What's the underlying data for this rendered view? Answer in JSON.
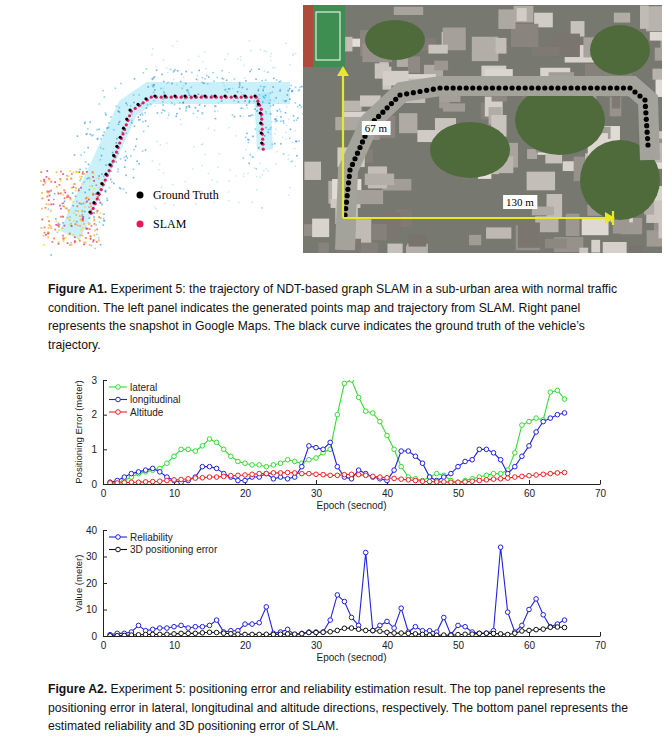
{
  "chart_data": [
    {
      "type": "line",
      "x_label": "Epoch (secnod)",
      "y_label": "Positioning Error (meter)",
      "xlim": [
        0,
        70
      ],
      "xticks": [
        0,
        10,
        20,
        30,
        40,
        50,
        60,
        70
      ],
      "ylim": [
        0,
        3
      ],
      "yticks": [
        0,
        1,
        2,
        3
      ],
      "grid": false,
      "legend": "upper left",
      "x": [
        1,
        2,
        3,
        4,
        5,
        6,
        7,
        8,
        9,
        10,
        11,
        12,
        13,
        14,
        15,
        16,
        17,
        18,
        19,
        20,
        21,
        22,
        23,
        24,
        25,
        26,
        27,
        28,
        29,
        30,
        31,
        32,
        33,
        34,
        35,
        36,
        37,
        38,
        39,
        40,
        41,
        42,
        43,
        44,
        45,
        46,
        47,
        48,
        49,
        50,
        51,
        52,
        53,
        54,
        55,
        56,
        57,
        58,
        59,
        60,
        61,
        62,
        63,
        64,
        65
      ],
      "series": [
        {
          "name": "lateral",
          "color": "#33dd33",
          "marker": "circle",
          "values": [
            0.05,
            0.05,
            0.1,
            0.2,
            0.3,
            0.35,
            0.4,
            0.45,
            0.6,
            0.8,
            1.0,
            1.0,
            0.95,
            1.1,
            1.3,
            1.2,
            1.0,
            0.8,
            0.65,
            0.6,
            0.55,
            0.55,
            0.5,
            0.55,
            0.6,
            0.7,
            0.65,
            0.6,
            0.7,
            0.75,
            0.9,
            1.0,
            2.0,
            2.9,
            3.0,
            2.5,
            2.1,
            2.05,
            1.8,
            1.4,
            1.0,
            0.5,
            0.2,
            0.15,
            0.1,
            0.2,
            0.3,
            0.25,
            0.1,
            0.05,
            0.1,
            0.15,
            0.2,
            0.25,
            0.3,
            0.3,
            0.4,
            0.9,
            1.7,
            1.8,
            1.9,
            1.85,
            2.65,
            2.7,
            2.45
          ]
        },
        {
          "name": "longitudinal",
          "color": "#2222dd",
          "marker": "circle",
          "values": [
            0.05,
            0.1,
            0.2,
            0.3,
            0.35,
            0.4,
            0.45,
            0.35,
            0.2,
            0.1,
            0.05,
            0.1,
            0.2,
            0.5,
            0.5,
            0.45,
            0.3,
            0.2,
            0.1,
            0.1,
            0.2,
            0.2,
            0.3,
            0.15,
            0.2,
            0.15,
            0.2,
            0.5,
            1.1,
            1.05,
            1.0,
            1.2,
            0.5,
            0.2,
            0.15,
            0.4,
            0.3,
            0.2,
            0.15,
            0.1,
            0.4,
            0.95,
            0.95,
            0.8,
            0.6,
            0.2,
            0.1,
            0.2,
            0.3,
            0.5,
            0.65,
            0.7,
            1.0,
            1.0,
            0.9,
            0.7,
            0.3,
            0.5,
            0.8,
            1.1,
            1.5,
            1.8,
            1.9,
            2.0,
            2.05
          ]
        },
        {
          "name": "Altitude",
          "color": "#ee2222",
          "marker": "circle",
          "values": [
            0.03,
            0.03,
            0.04,
            0.05,
            0.05,
            0.06,
            0.07,
            0.08,
            0.1,
            0.12,
            0.13,
            0.15,
            0.17,
            0.18,
            0.2,
            0.2,
            0.22,
            0.24,
            0.25,
            0.26,
            0.28,
            0.3,
            0.3,
            0.32,
            0.32,
            0.33,
            0.32,
            0.3,
            0.3,
            0.28,
            0.27,
            0.25,
            0.25,
            0.27,
            0.28,
            0.27,
            0.25,
            0.22,
            0.2,
            0.18,
            0.16,
            0.14,
            0.12,
            0.1,
            0.08,
            0.07,
            0.06,
            0.06,
            0.05,
            0.05,
            0.06,
            0.08,
            0.1,
            0.12,
            0.14,
            0.15,
            0.17,
            0.2,
            0.22,
            0.24,
            0.26,
            0.28,
            0.3,
            0.32,
            0.33
          ]
        }
      ]
    },
    {
      "type": "line",
      "x_label": "Epoch (secnod)",
      "y_label": "Value (meter)",
      "xlim": [
        0,
        70
      ],
      "xticks": [
        0,
        10,
        20,
        30,
        40,
        50,
        60,
        70
      ],
      "ylim": [
        0,
        40
      ],
      "yticks": [
        0,
        10,
        20,
        30,
        40
      ],
      "grid": false,
      "legend": "upper left",
      "x": [
        1,
        2,
        3,
        4,
        5,
        6,
        7,
        8,
        9,
        10,
        11,
        12,
        13,
        14,
        15,
        16,
        17,
        18,
        19,
        20,
        21,
        22,
        23,
        24,
        25,
        26,
        27,
        28,
        29,
        30,
        31,
        32,
        33,
        34,
        35,
        36,
        37,
        38,
        39,
        40,
        41,
        42,
        43,
        44,
        45,
        46,
        47,
        48,
        49,
        50,
        51,
        52,
        53,
        54,
        55,
        56,
        57,
        58,
        59,
        60,
        61,
        62,
        63,
        64,
        65
      ],
      "series": [
        {
          "name": "Reliability",
          "color": "#2222dd",
          "marker": "circle",
          "values": [
            0.5,
            1,
            1,
            1.5,
            4,
            2,
            2.5,
            3,
            3,
            3.5,
            4,
            3,
            3.5,
            3.5,
            4,
            6,
            1.5,
            2,
            2,
            4.5,
            4.5,
            5,
            11,
            1,
            1.5,
            2.5,
            0.5,
            1,
            1.5,
            1.5,
            1.5,
            6,
            15.5,
            13,
            7,
            4,
            31.5,
            2,
            4,
            5.5,
            3,
            10.5,
            1.5,
            3.5,
            2,
            2,
            1.5,
            7,
            0.5,
            4,
            3.5,
            1.5,
            1,
            1,
            2,
            33.5,
            9,
            1.5,
            4,
            10,
            14,
            8,
            3.5,
            4.5,
            6
          ]
        },
        {
          "name": "3D positioning error",
          "color": "#111111",
          "marker": "circle",
          "values": [
            0.1,
            0.1,
            0.2,
            0.35,
            0.45,
            0.55,
            0.6,
            0.6,
            0.65,
            0.8,
            1.0,
            1.0,
            1.0,
            1.2,
            1.4,
            1.3,
            1.05,
            0.85,
            0.65,
            0.6,
            0.6,
            0.6,
            0.65,
            0.6,
            0.65,
            0.75,
            0.7,
            0.85,
            1.3,
            1.3,
            1.4,
            1.6,
            2.1,
            2.9,
            3.0,
            2.55,
            2.1,
            2.05,
            1.8,
            1.4,
            1.1,
            1.1,
            1.0,
            0.8,
            0.6,
            0.3,
            0.3,
            0.35,
            0.3,
            0.5,
            0.65,
            0.7,
            1.0,
            1.05,
            0.95,
            0.8,
            0.55,
            1.05,
            1.9,
            2.1,
            2.4,
            2.6,
            3.3,
            3.4,
            3.2
          ]
        }
      ]
    }
  ],
  "figure_a1": {
    "legend": [
      {
        "label": "Ground Truth",
        "color": "#000000"
      },
      {
        "label": "SLAM",
        "color": "#e8175d"
      }
    ],
    "map_labels": [
      "67 m",
      "130 m"
    ],
    "caption": {
      "label": "Figure A1.",
      "text": "Experiment 5: the trajectory of NDT-based graph SLAM in a sub-urban area with normal traffic condition. The left panel indicates the generated points map and trajectory from SLAM. Right panel represents the snapshot in Google Maps. The black curve indicates the ground truth of the vehicle’s trajectory."
    }
  },
  "figure_a2": {
    "caption": {
      "label": "Figure A2.",
      "text": "Experiment 5: positioning error and reliability estimation result. The top panel represents the positioning error in lateral, longitudinal and altitude directions, respectively. The bottom panel represents the estimated reliability and 3D positioning error of SLAM."
    }
  }
}
